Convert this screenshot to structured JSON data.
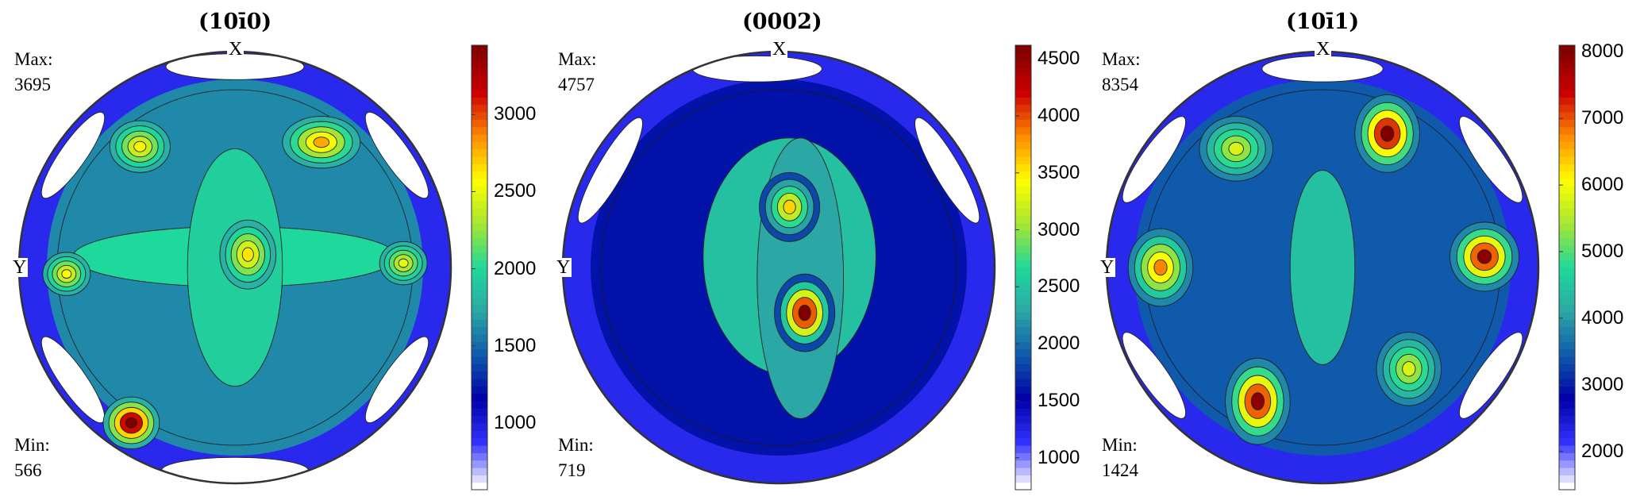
{
  "chart_data": [
    {
      "type": "heatmap",
      "title": "(10ī0)",
      "max_label": "Max:",
      "max_value": "3695",
      "min_label": "Min:",
      "min_value": "566",
      "axis_x_label": "X",
      "axis_y_label": "Y",
      "colorbar": {
        "min": 566,
        "max": 3450,
        "ticks": [
          "1000",
          "1500",
          "2000",
          "2500",
          "3000"
        ]
      },
      "hotspots": [
        {
          "label": "peak-upper-left",
          "value": 2600
        },
        {
          "label": "peak-upper-right",
          "value": 2800
        },
        {
          "label": "peak-center",
          "value": 2650
        },
        {
          "label": "peak-left",
          "value": 2600
        },
        {
          "label": "peak-right",
          "value": 2500
        },
        {
          "label": "peak-lower-left",
          "value": 3600
        }
      ]
    },
    {
      "type": "heatmap",
      "title": "(0002)",
      "max_label": "Max:",
      "max_value": "4757",
      "min_label": "Min:",
      "min_value": "719",
      "axis_x_label": "X",
      "axis_y_label": "Y",
      "colorbar": {
        "min": 719,
        "max": 4620,
        "ticks": [
          "1000",
          "1500",
          "2000",
          "2500",
          "3000",
          "3500",
          "4000",
          "4500"
        ]
      },
      "hotspots": [
        {
          "label": "peak-upper-center",
          "value": 3600
        },
        {
          "label": "peak-center",
          "value": 4700
        }
      ]
    },
    {
      "type": "heatmap",
      "title": "(10ī1)",
      "max_label": "Max:",
      "max_value": "8354",
      "min_label": "Min:",
      "min_value": "1424",
      "axis_x_label": "X",
      "axis_y_label": "Y",
      "colorbar": {
        "min": 1424,
        "max": 8100,
        "ticks": [
          "2000",
          "3000",
          "4000",
          "5000",
          "6000",
          "7000",
          "8000"
        ]
      },
      "hotspots": [
        {
          "label": "peak-top-right",
          "value": 8300
        },
        {
          "label": "peak-right",
          "value": 8000
        },
        {
          "label": "peak-left",
          "value": 6800
        },
        {
          "label": "peak-bottom-left",
          "value": 8000
        },
        {
          "label": "peak-upper-left",
          "value": 5800
        },
        {
          "label": "peak-lower-right",
          "value": 5800
        }
      ]
    }
  ],
  "colormap": [
    "#ffffff",
    "#3333ff",
    "#0000a8",
    "#0f5aab",
    "#2ba7a6",
    "#1ed99b",
    "#a6e632",
    "#ffff00",
    "#ff8c00",
    "#cc0000",
    "#800000"
  ]
}
